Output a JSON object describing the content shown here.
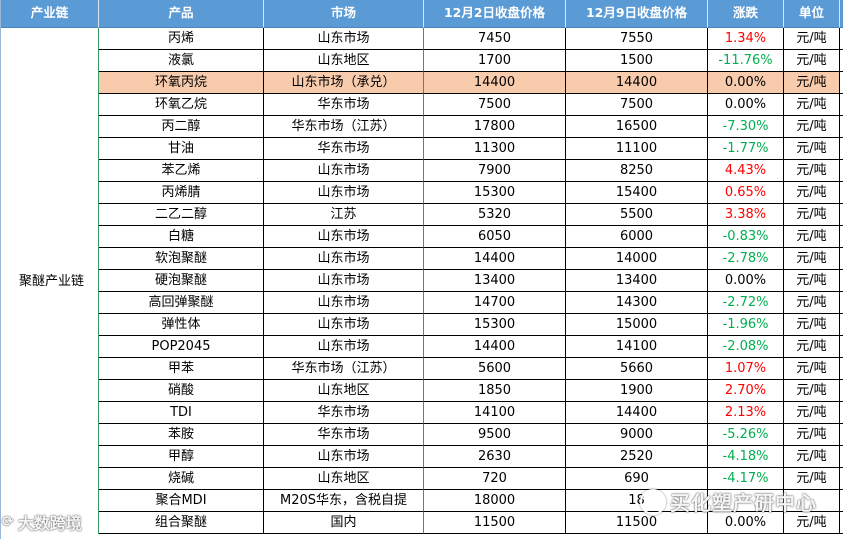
{
  "headers": [
    "产业链",
    "产品",
    "市场",
    "12月2日收盘价格",
    "12月9日收盘价格",
    "涨跌",
    "单位"
  ],
  "chain_label": "聚醚产业链",
  "rows": [
    {
      "product": "丙烯",
      "market": "山东市场",
      "p1": "7450",
      "p2": "7550",
      "change": "1.34%",
      "dir": "red",
      "unit": "元/吨"
    },
    {
      "product": "液氯",
      "market": "山东地区",
      "p1": "1700",
      "p2": "1500",
      "change": "-11.76%",
      "dir": "green",
      "unit": "元/吨"
    },
    {
      "product": "环氧丙烷",
      "market": "山东市场（承兑）",
      "p1": "14400",
      "p2": "14400",
      "change": "0.00%",
      "dir": "black",
      "unit": "元/吨",
      "highlight": true
    },
    {
      "product": "环氧乙烷",
      "market": "华东市场",
      "p1": "7500",
      "p2": "7500",
      "change": "0.00%",
      "dir": "black",
      "unit": "元/吨"
    },
    {
      "product": "丙二醇",
      "market": "华东市场（江苏）",
      "p1": "17800",
      "p2": "16500",
      "change": "-7.30%",
      "dir": "green",
      "unit": "元/吨"
    },
    {
      "product": "甘油",
      "market": "华东市场",
      "p1": "11300",
      "p2": "11100",
      "change": "-1.77%",
      "dir": "green",
      "unit": "元/吨"
    },
    {
      "product": "苯乙烯",
      "market": "山东市场",
      "p1": "7900",
      "p2": "8250",
      "change": "4.43%",
      "dir": "red",
      "unit": "元/吨"
    },
    {
      "product": "丙烯腈",
      "market": "山东市场",
      "p1": "15300",
      "p2": "15400",
      "change": "0.65%",
      "dir": "red",
      "unit": "元/吨"
    },
    {
      "product": "二乙二醇",
      "market": "江苏",
      "p1": "5320",
      "p2": "5500",
      "change": "3.38%",
      "dir": "red",
      "unit": "元/吨"
    },
    {
      "product": "白糖",
      "market": "山东市场",
      "p1": "6050",
      "p2": "6000",
      "change": "-0.83%",
      "dir": "green",
      "unit": "元/吨"
    },
    {
      "product": "软泡聚醚",
      "market": "山东市场",
      "p1": "14400",
      "p2": "14000",
      "change": "-2.78%",
      "dir": "green",
      "unit": "元/吨"
    },
    {
      "product": "硬泡聚醚",
      "market": "山东市场",
      "p1": "13400",
      "p2": "13400",
      "change": "0.00%",
      "dir": "black",
      "unit": "元/吨"
    },
    {
      "product": "高回弹聚醚",
      "market": "山东市场",
      "p1": "14700",
      "p2": "14300",
      "change": "-2.72%",
      "dir": "green",
      "unit": "元/吨"
    },
    {
      "product": "弹性体",
      "market": "山东市场",
      "p1": "15300",
      "p2": "15000",
      "change": "-1.96%",
      "dir": "green",
      "unit": "元/吨"
    },
    {
      "product": "POP2045",
      "market": "山东市场",
      "p1": "14400",
      "p2": "14100",
      "change": "-2.08%",
      "dir": "green",
      "unit": "元/吨"
    },
    {
      "product": "甲苯",
      "market": "华东市场（江苏）",
      "p1": "5600",
      "p2": "5660",
      "change": "1.07%",
      "dir": "red",
      "unit": "元/吨"
    },
    {
      "product": "硝酸",
      "market": "山东地区",
      "p1": "1850",
      "p2": "1900",
      "change": "2.70%",
      "dir": "red",
      "unit": "元/吨"
    },
    {
      "product": "TDI",
      "market": "华东市场",
      "p1": "14100",
      "p2": "14400",
      "change": "2.13%",
      "dir": "red",
      "unit": "元/吨"
    },
    {
      "product": "苯胺",
      "market": "华东市场",
      "p1": "9500",
      "p2": "9000",
      "change": "-5.26%",
      "dir": "green",
      "unit": "元/吨"
    },
    {
      "product": "甲醇",
      "market": "山东市场",
      "p1": "2630",
      "p2": "2520",
      "change": "-4.18%",
      "dir": "green",
      "unit": "元/吨"
    },
    {
      "product": "烧碱",
      "market": "山东地区",
      "p1": "720",
      "p2": "690",
      "change": "-4.17%",
      "dir": "green",
      "unit": "元/吨"
    },
    {
      "product": "聚合MDI",
      "market": "M20S华东，含税自提",
      "p1": "18000",
      "p2": "18",
      "change": "",
      "dir": "black",
      "unit": ""
    },
    {
      "product": "组合聚醚",
      "market": "国内",
      "p1": "11500",
      "p2": "11500",
      "change": "0.00%",
      "dir": "black",
      "unit": "元/吨"
    }
  ],
  "colors": {
    "header_bg": "#5b9bd5",
    "highlight_bg": "#f8cbad",
    "up": "#ff0000",
    "down": "#00b050"
  },
  "watermarks": {
    "left": "大数跨境",
    "right": "买化塑产研中心"
  }
}
